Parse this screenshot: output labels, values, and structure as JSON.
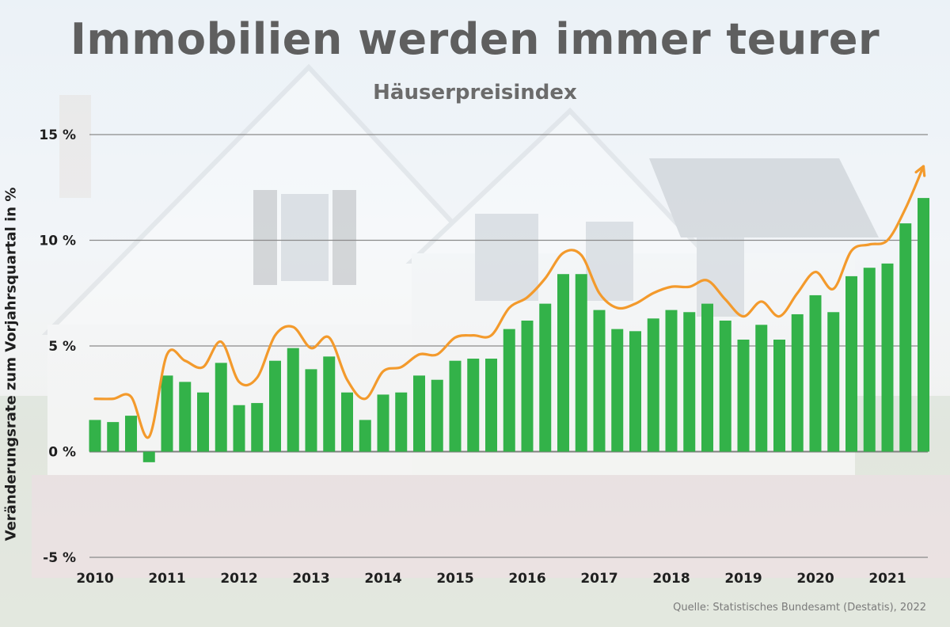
{
  "title": "Immobilien werden immer teurer",
  "subtitle": "Häuserpreisindex",
  "source": "Quelle: Statistisches Bundesamt (Destatis), 2022",
  "colors": {
    "bar": "#33b249",
    "line": "#f39a2c",
    "grid": "#8a8a8a",
    "text": "#1f1f1f"
  },
  "chart_data": {
    "type": "bar",
    "title": "Immobilien werden immer teurer",
    "subtitle": "Häuserpreisindex",
    "ylabel": "Veränderungsrate zum Vorjahrsquartal in %",
    "ylim": [
      -5,
      15
    ],
    "yticks": [
      15,
      10,
      5,
      0,
      -5
    ],
    "ytick_labels": [
      "15 %",
      "10 %",
      "5 %",
      "0 %",
      "-5 %"
    ],
    "xlim": [
      2010,
      2021.75
    ],
    "xticks": [
      2010,
      2011,
      2012,
      2013,
      2014,
      2015,
      2016,
      2017,
      2018,
      2019,
      2020,
      2021
    ],
    "xtick_labels": [
      "2010",
      "2011",
      "2012",
      "2013",
      "2014",
      "2015",
      "2016",
      "2017",
      "2018",
      "2019",
      "2020",
      "2021"
    ],
    "grid": true,
    "series": [
      {
        "type": "bar",
        "x": [
          2010.0,
          2010.25,
          2010.5,
          2010.75,
          2011.0,
          2011.25,
          2011.5,
          2011.75,
          2012.0,
          2012.25,
          2012.5,
          2012.75,
          2013.0,
          2013.25,
          2013.5,
          2013.75,
          2014.0,
          2014.25,
          2014.5,
          2014.75,
          2015.0,
          2015.25,
          2015.5,
          2015.75,
          2016.0,
          2016.25,
          2016.5,
          2016.75,
          2017.0,
          2017.25,
          2017.5,
          2017.75,
          2018.0,
          2018.25,
          2018.5,
          2018.75,
          2019.0,
          2019.25,
          2019.5,
          2019.75,
          2020.0,
          2020.25,
          2020.5,
          2020.75,
          2021.0,
          2021.25,
          2021.5
        ],
        "values": [
          1.5,
          1.4,
          1.7,
          -0.5,
          3.6,
          3.3,
          2.8,
          4.2,
          2.2,
          2.3,
          4.3,
          4.9,
          3.9,
          4.5,
          2.8,
          1.5,
          2.7,
          2.8,
          3.6,
          3.4,
          4.3,
          4.4,
          4.4,
          5.8,
          6.2,
          7.0,
          8.4,
          8.4,
          6.7,
          5.8,
          5.7,
          6.3,
          6.7,
          6.6,
          7.0,
          6.2,
          5.3,
          6.0,
          5.3,
          6.5,
          7.4,
          6.6,
          8.3,
          8.7,
          8.9,
          10.8,
          12.0
        ]
      },
      {
        "type": "line",
        "x": [
          2010.0,
          2010.25,
          2010.5,
          2010.75,
          2011.0,
          2011.25,
          2011.5,
          2011.75,
          2012.0,
          2012.25,
          2012.5,
          2012.75,
          2013.0,
          2013.25,
          2013.5,
          2013.75,
          2014.0,
          2014.25,
          2014.5,
          2014.75,
          2015.0,
          2015.25,
          2015.5,
          2015.75,
          2016.0,
          2016.25,
          2016.5,
          2016.75,
          2017.0,
          2017.25,
          2017.5,
          2017.75,
          2018.0,
          2018.25,
          2018.5,
          2018.75,
          2019.0,
          2019.25,
          2019.5,
          2019.75,
          2020.0,
          2020.25,
          2020.5,
          2020.75,
          2021.0,
          2021.25,
          2021.5
        ],
        "values": [
          2.5,
          2.5,
          2.6,
          0.7,
          4.6,
          4.3,
          4.0,
          5.2,
          3.3,
          3.5,
          5.5,
          5.9,
          4.9,
          5.4,
          3.4,
          2.5,
          3.8,
          4.0,
          4.6,
          4.6,
          5.4,
          5.5,
          5.5,
          6.8,
          7.3,
          8.2,
          9.4,
          9.3,
          7.5,
          6.8,
          7.0,
          7.5,
          7.8,
          7.8,
          8.1,
          7.2,
          6.4,
          7.1,
          6.4,
          7.5,
          8.5,
          7.7,
          9.5,
          9.8,
          10.0,
          11.5,
          13.5
        ]
      }
    ]
  }
}
